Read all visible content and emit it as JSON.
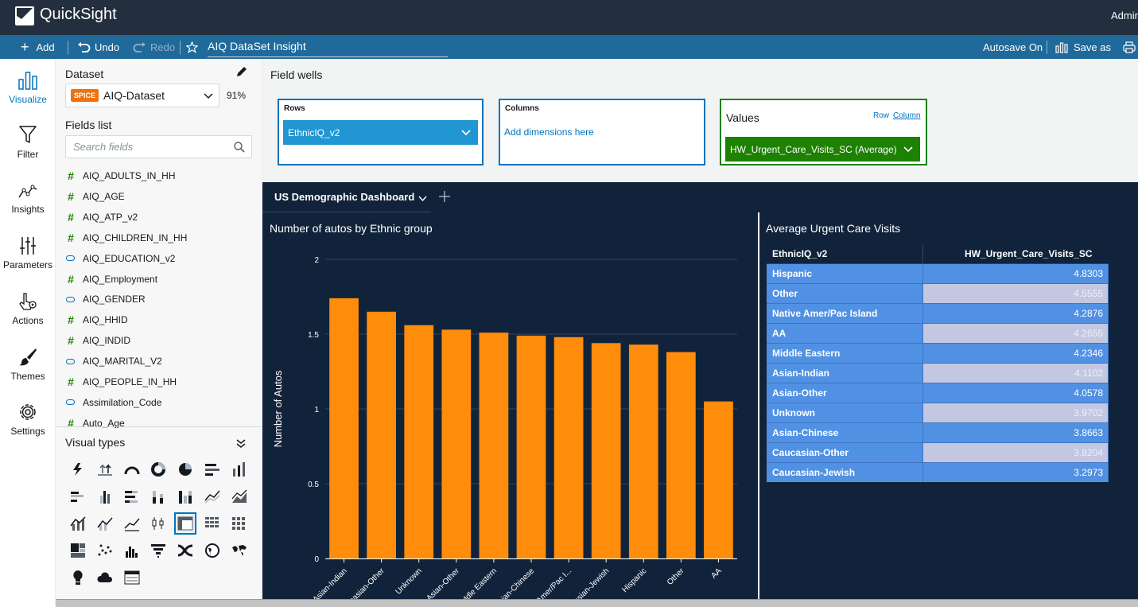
{
  "app": {
    "title": "QuickSight",
    "user": "Admin"
  },
  "toolbar": {
    "add": "Add",
    "undo": "Undo",
    "redo": "Redo",
    "analysis_title": "AIQ DataSet Insight",
    "autosave": "Autosave On",
    "save_as": "Save as"
  },
  "nav": [
    {
      "label": "Visualize",
      "icon": "bar-chart-icon",
      "active": true
    },
    {
      "label": "Filter",
      "icon": "funnel-icon"
    },
    {
      "label": "Insights",
      "icon": "line-insights-icon"
    },
    {
      "label": "Parameters",
      "icon": "sliders-icon"
    },
    {
      "label": "Actions",
      "icon": "pointer-gear-icon"
    },
    {
      "label": "Themes",
      "icon": "brush-icon"
    },
    {
      "label": "Settings",
      "icon": "gear-icon"
    }
  ],
  "panel": {
    "dataset_label": "Dataset",
    "spice": "SPICE",
    "dataset_name": "AIQ-Dataset",
    "dataset_pct": "91%",
    "fields_label": "Fields list",
    "search_placeholder": "Search fields",
    "fields": [
      {
        "name": "AIQ_ADULTS_IN_HH",
        "type": "measure"
      },
      {
        "name": "AIQ_AGE",
        "type": "measure"
      },
      {
        "name": "AIQ_ATP_v2",
        "type": "measure"
      },
      {
        "name": "AIQ_CHILDREN_IN_HH",
        "type": "measure"
      },
      {
        "name": "AIQ_EDUCATION_v2",
        "type": "dimension"
      },
      {
        "name": "AIQ_Employment",
        "type": "measure"
      },
      {
        "name": "AIQ_GENDER",
        "type": "dimension"
      },
      {
        "name": "AIQ_HHID",
        "type": "measure"
      },
      {
        "name": "AIQ_INDID",
        "type": "measure"
      },
      {
        "name": "AIQ_MARITAL_V2",
        "type": "dimension"
      },
      {
        "name": "AIQ_PEOPLE_IN_HH",
        "type": "measure"
      },
      {
        "name": "Assimilation_Code",
        "type": "dimension"
      },
      {
        "name": "Auto_Age",
        "type": "measure"
      }
    ],
    "visual_types_label": "Visual types"
  },
  "field_wells": {
    "label": "Field wells",
    "rows_title": "Rows",
    "rows_value": "EthnicIQ_v2",
    "columns_title": "Columns",
    "columns_placeholder": "Add dimensions here",
    "values_title": "Values",
    "row_link": "Row",
    "column_link": "Column",
    "values_value": "HW_Urgent_Care_Visits_SC (Average)"
  },
  "sheet": {
    "tab": "US Demographic Dashboard"
  },
  "bar_visual": {
    "title": "Number of autos by Ethnic group"
  },
  "chart_data": {
    "type": "bar",
    "title": "Number of autos by Ethnic group",
    "xlabel": "",
    "ylabel": "Number of Autos",
    "ylim": [
      0,
      2
    ],
    "yticks": [
      "0",
      "0.5",
      "1",
      "1.5",
      "2"
    ],
    "color": "#ff8c0a",
    "categories": [
      "Asian-Indian",
      "Caucasian-Other",
      "Unknown",
      "Asian-Other",
      "Middle Eastern",
      "Asian-Chinese",
      "Native Amer/Pac I...",
      "Caucasian-Jewish",
      "Hispanic",
      "Other",
      "AA"
    ],
    "tick_labels": [
      "Asian-Indian",
      "casian-Other",
      "Unknown",
      "Asian-Other",
      "iddle Eastern",
      "ian-Chinese",
      "Amer/Pac I...",
      "casian-Jewish",
      "Hispanic",
      "Other",
      "AA"
    ],
    "values": [
      1.74,
      1.65,
      1.56,
      1.53,
      1.51,
      1.49,
      1.48,
      1.44,
      1.43,
      1.38,
      1.05
    ]
  },
  "table_visual": {
    "title": "Average Urgent Care Visits",
    "col1": "EthnicIQ_v2",
    "col2": "HW_Urgent_Care_Visits_SC",
    "rows": [
      {
        "name": "Hispanic",
        "value": "4.8303"
      },
      {
        "name": "Other",
        "value": "4.5555"
      },
      {
        "name": "Native Amer/Pac Island",
        "value": "4.2876"
      },
      {
        "name": "AA",
        "value": "4.2655"
      },
      {
        "name": "Middle Eastern",
        "value": "4.2346"
      },
      {
        "name": "Asian-Indian",
        "value": "4.1102"
      },
      {
        "name": "Asian-Other",
        "value": "4.0578"
      },
      {
        "name": "Unknown",
        "value": "3.9702"
      },
      {
        "name": "Asian-Chinese",
        "value": "3.8663"
      },
      {
        "name": "Caucasian-Other",
        "value": "3.8204"
      },
      {
        "name": "Caucasian-Jewish",
        "value": "3.2973"
      }
    ]
  }
}
